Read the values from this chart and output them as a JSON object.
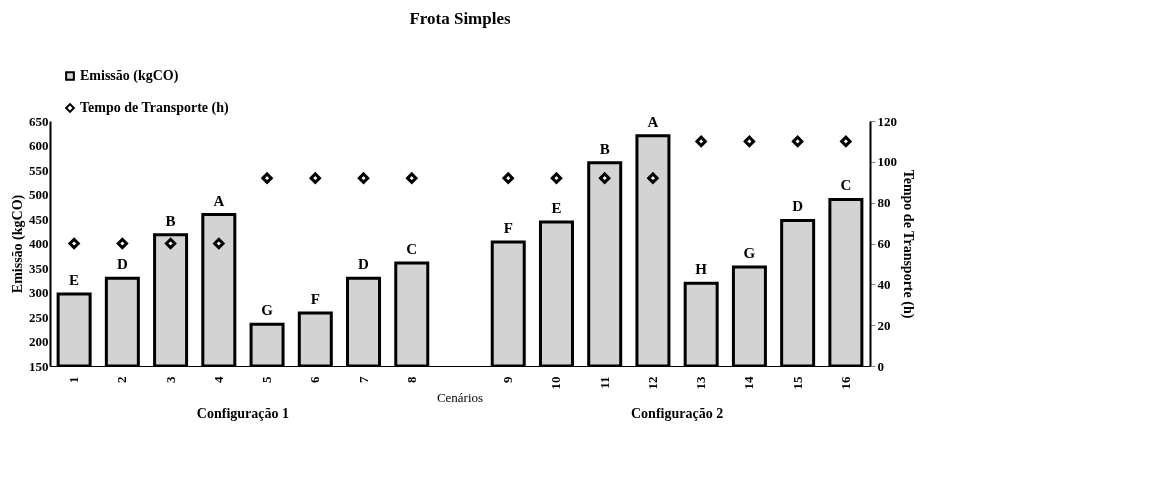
{
  "chart_data": {
    "type": "bar",
    "title": "Frota Simples",
    "xlabel": "Cenários",
    "ylabel": "Emissão (kgCO)",
    "y2label": "Tempo de Transporte (h)",
    "categories": [
      "1",
      "2",
      "3",
      "4",
      "5",
      "6",
      "7",
      "8",
      null,
      "9",
      "10",
      "11",
      "12",
      "13",
      "14",
      "15",
      "16"
    ],
    "series": [
      {
        "name": "Emissão (kgCO)",
        "color": "#d3d3d3",
        "values": [
          297,
          329,
          418,
          459,
          235,
          258,
          329,
          360,
          null,
          403,
          444,
          565,
          620,
          319,
          352,
          447,
          490
        ],
        "value_labels": [
          "E",
          "D",
          "B",
          "A",
          "G",
          "F",
          "D",
          "C",
          null,
          "F",
          "E",
          "B",
          "A",
          "H",
          "G",
          "D",
          "C"
        ]
      },
      {
        "name": "Tempo de Transporte (h)",
        "type": "scatter",
        "axis": "y2",
        "color": "#ffffff",
        "marker": "diamond",
        "values": [
          60,
          60,
          60,
          60,
          92,
          92,
          92,
          92,
          null,
          92,
          92,
          92,
          92,
          110,
          110,
          110,
          110
        ]
      }
    ],
    "ylim": [
      150,
      650
    ],
    "yticks": [
      150,
      200,
      250,
      300,
      350,
      400,
      450,
      500,
      550,
      600,
      650
    ],
    "y2lim": [
      0,
      120
    ],
    "y2ticks": [
      0,
      20,
      40,
      60,
      80,
      100,
      120
    ],
    "annotations": [
      "Configuração 1",
      "Configuração 2"
    ],
    "legend": "top left",
    "grid": false
  }
}
